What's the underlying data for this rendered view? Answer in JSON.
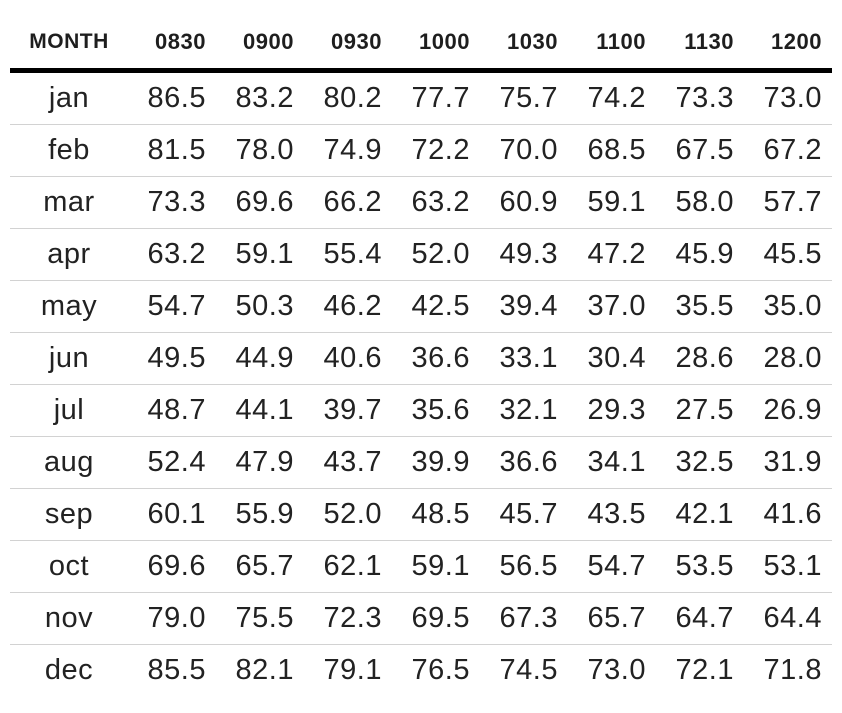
{
  "chart_data": {
    "type": "table",
    "columns": [
      "MONTH",
      "0830",
      "0900",
      "0930",
      "1000",
      "1030",
      "1100",
      "1130",
      "1200"
    ],
    "rows": [
      [
        "jan",
        "86.5",
        "83.2",
        "80.2",
        "77.7",
        "75.7",
        "74.2",
        "73.3",
        "73.0"
      ],
      [
        "feb",
        "81.5",
        "78.0",
        "74.9",
        "72.2",
        "70.0",
        "68.5",
        "67.5",
        "67.2"
      ],
      [
        "mar",
        "73.3",
        "69.6",
        "66.2",
        "63.2",
        "60.9",
        "59.1",
        "58.0",
        "57.7"
      ],
      [
        "apr",
        "63.2",
        "59.1",
        "55.4",
        "52.0",
        "49.3",
        "47.2",
        "45.9",
        "45.5"
      ],
      [
        "may",
        "54.7",
        "50.3",
        "46.2",
        "42.5",
        "39.4",
        "37.0",
        "35.5",
        "35.0"
      ],
      [
        "jun",
        "49.5",
        "44.9",
        "40.6",
        "36.6",
        "33.1",
        "30.4",
        "28.6",
        "28.0"
      ],
      [
        "jul",
        "48.7",
        "44.1",
        "39.7",
        "35.6",
        "32.1",
        "29.3",
        "27.5",
        "26.9"
      ],
      [
        "aug",
        "52.4",
        "47.9",
        "43.7",
        "39.9",
        "36.6",
        "34.1",
        "32.5",
        "31.9"
      ],
      [
        "sep",
        "60.1",
        "55.9",
        "52.0",
        "48.5",
        "45.7",
        "43.5",
        "42.1",
        "41.6"
      ],
      [
        "oct",
        "69.6",
        "65.7",
        "62.1",
        "59.1",
        "56.5",
        "54.7",
        "53.5",
        "53.1"
      ],
      [
        "nov",
        "79.0",
        "75.5",
        "72.3",
        "69.5",
        "67.3",
        "65.7",
        "64.7",
        "64.4"
      ],
      [
        "dec",
        "85.5",
        "82.1",
        "79.1",
        "76.5",
        "74.5",
        "73.0",
        "72.1",
        "71.8"
      ]
    ]
  }
}
